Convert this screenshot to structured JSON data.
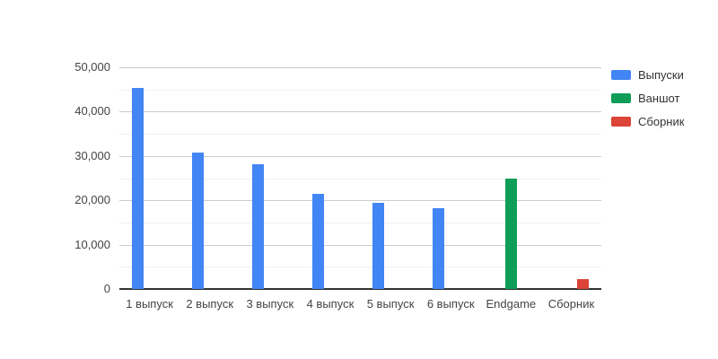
{
  "chart_data": {
    "type": "bar",
    "title": "",
    "xlabel": "",
    "ylabel": "",
    "categories": [
      "1 выпуск",
      "2 выпуск",
      "3 выпуск",
      "4 выпуск",
      "5 выпуск",
      "6 выпуск",
      "Endgame",
      "Сборник"
    ],
    "series": [
      {
        "name": "Выпуски",
        "color": "#4285F4",
        "values": [
          45400,
          30700,
          28100,
          21400,
          19400,
          18300,
          null,
          null
        ]
      },
      {
        "name": "Ваншот",
        "color": "#0F9D58",
        "values": [
          null,
          null,
          null,
          null,
          null,
          null,
          25000,
          null
        ]
      },
      {
        "name": "Сборник",
        "color": "#DB4437",
        "values": [
          null,
          null,
          null,
          null,
          null,
          null,
          null,
          2200
        ]
      }
    ],
    "ylim": [
      0,
      50000
    ],
    "y_major_step": 10000,
    "y_minor_step": 5000,
    "y_tick_labels": [
      "0",
      "10,000",
      "20,000",
      "30,000",
      "40,000",
      "50,000"
    ],
    "grid": true,
    "legend_position": "right",
    "colors": {
      "grid_major": "#cccccc",
      "grid_minor": "#f1f1f1",
      "axis_baseline": "#333333",
      "axis_text": "#444444",
      "legend_text": "#333333",
      "background": "#ffffff"
    }
  }
}
